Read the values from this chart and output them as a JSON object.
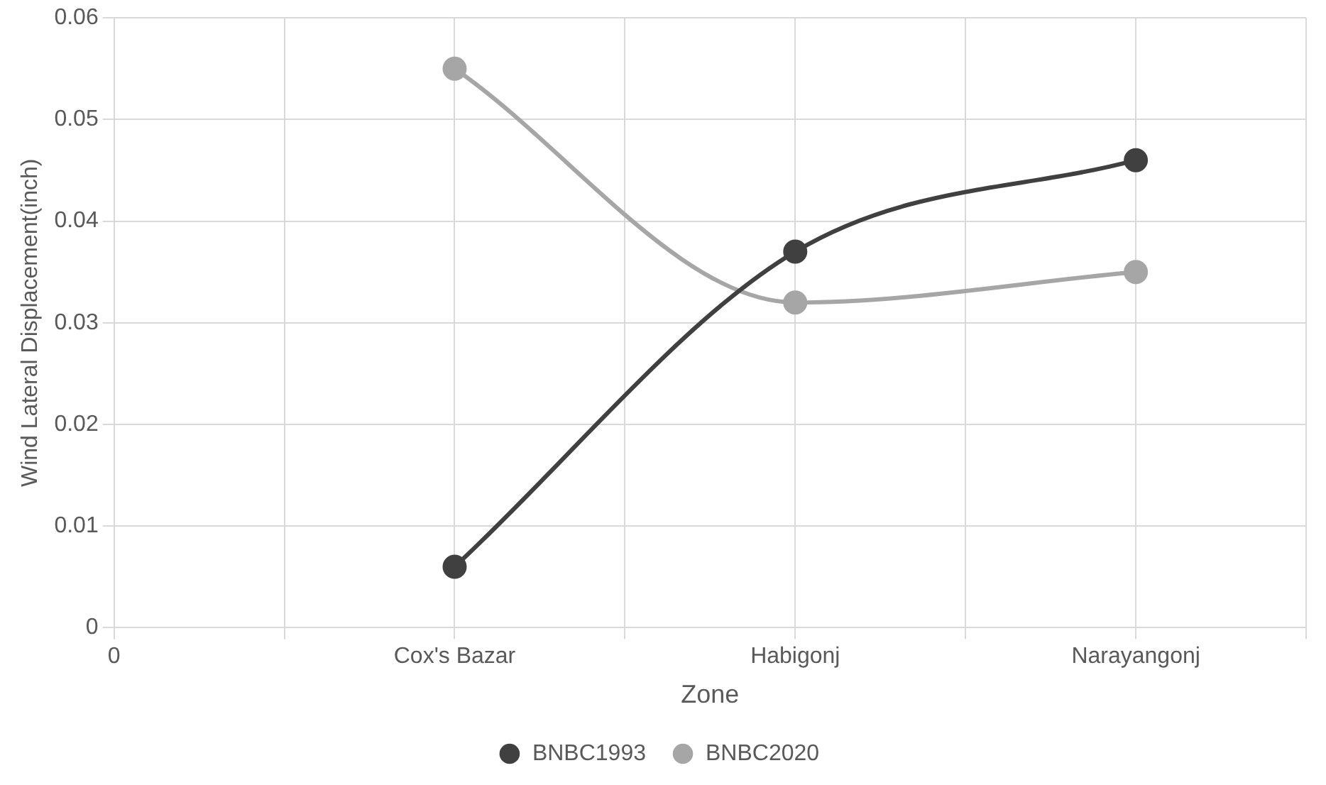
{
  "chart_data": {
    "type": "line",
    "xlabel": "Zone",
    "ylabel": "Wind Lateral Displacement(inch)",
    "categories": [
      "0",
      null,
      "Cox's Bazar",
      null,
      "Habigonj",
      null,
      "Narayangonj",
      null
    ],
    "series": [
      {
        "name": "BNBC1993",
        "color": "#404040",
        "values": [
          null,
          null,
          0.006,
          null,
          0.037,
          null,
          0.046,
          null
        ]
      },
      {
        "name": "BNBC2020",
        "color": "#a6a6a6",
        "values": [
          null,
          null,
          0.055,
          null,
          0.032,
          null,
          0.035,
          null
        ]
      }
    ],
    "ylim": [
      0,
      0.06
    ],
    "yticks": [
      0,
      0.01,
      0.02,
      0.03,
      0.04,
      0.05,
      0.06
    ],
    "grid": true,
    "legend": "bottom",
    "marker": "circle",
    "line_style": "solid"
  }
}
